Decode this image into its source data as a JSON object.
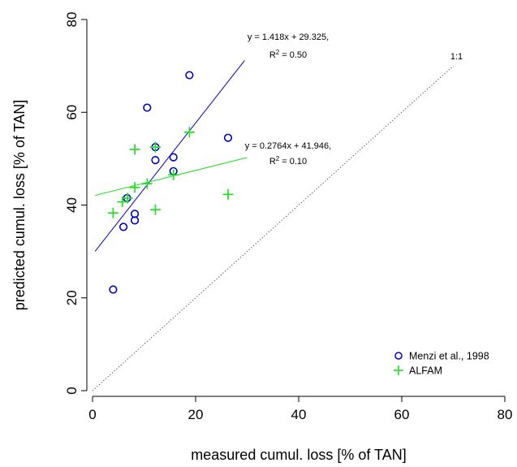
{
  "chart_data": {
    "type": "scatter",
    "title": "",
    "xlabel": "measured cumul. loss [% of TAN]",
    "ylabel": "predicted cumul. loss [% of TAN]",
    "xlim": [
      0,
      80
    ],
    "ylim": [
      0,
      80
    ],
    "x_ticks": [
      "0",
      "20",
      "40",
      "60",
      "80"
    ],
    "y_ticks": [
      "0",
      "20",
      "40",
      "60",
      "80"
    ],
    "grid": false,
    "legend_position": "bottom-right",
    "series": [
      {
        "name": "Menzi et al., 1998",
        "marker": "circle",
        "color": "#0000cc",
        "points": [
          [
            4.0,
            21.8
          ],
          [
            6.0,
            35.3
          ],
          [
            6.7,
            41.5
          ],
          [
            8.2,
            38.1
          ],
          [
            8.2,
            36.7
          ],
          [
            10.6,
            61.0
          ],
          [
            12.2,
            52.5
          ],
          [
            12.2,
            49.7
          ],
          [
            15.7,
            50.3
          ],
          [
            15.7,
            47.3
          ],
          [
            18.8,
            68.0
          ],
          [
            26.3,
            54.5
          ]
        ],
        "fit": {
          "slope": 1.418,
          "intercept": 29.325,
          "x_range": [
            0.5,
            29.5
          ],
          "equation": "y = 1.418x + 29.325,",
          "r2_label": "R",
          "r2_value": " = 0.50"
        }
      },
      {
        "name": "ALFAM",
        "marker": "plus",
        "color": "#22dd22",
        "points": [
          [
            4.0,
            38.3
          ],
          [
            5.8,
            40.7
          ],
          [
            6.8,
            41.5
          ],
          [
            8.2,
            52.0
          ],
          [
            8.2,
            43.8
          ],
          [
            10.6,
            44.6
          ],
          [
            12.2,
            52.5
          ],
          [
            12.2,
            39.0
          ],
          [
            15.7,
            46.5
          ],
          [
            18.8,
            55.7
          ],
          [
            26.3,
            42.3
          ]
        ],
        "fit": {
          "slope": 0.2764,
          "intercept": 41.946,
          "x_range": [
            0.5,
            30.0
          ],
          "equation": "y = 0.2764x + 41.946,",
          "r2_label": "R",
          "r2_value": " = 0.10"
        }
      }
    ],
    "reference_line": {
      "label": "1:1",
      "x_range": [
        0,
        70.0
      ]
    }
  }
}
